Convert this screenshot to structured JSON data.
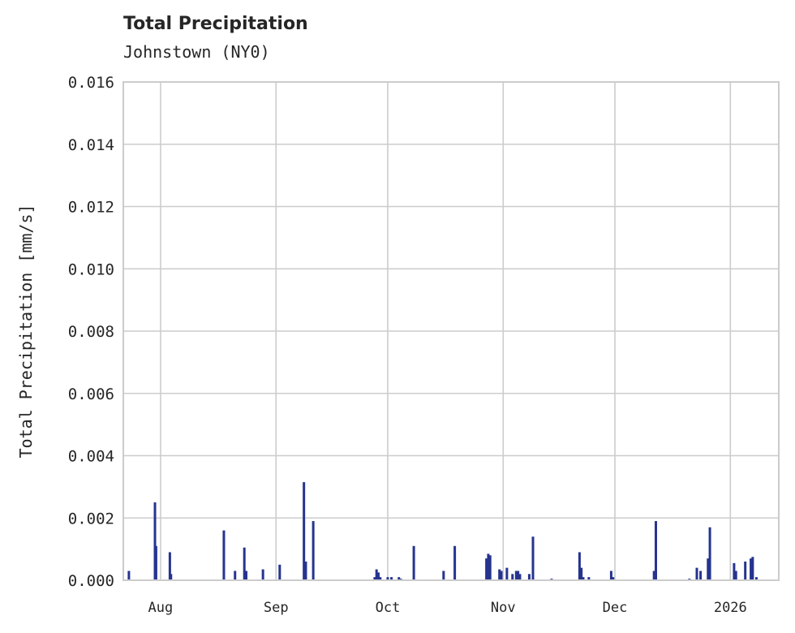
{
  "header": {
    "title": "Total Precipitation",
    "subtitle": "Johnstown (NY0)"
  },
  "chart_data": {
    "type": "bar",
    "title": "Total Precipitation",
    "subtitle": "Johnstown (NY0)",
    "xlabel": "",
    "ylabel": "Total Precipitation [mm/s]",
    "ylim": [
      0,
      0.016
    ],
    "yticks": [
      "0.000",
      "0.002",
      "0.004",
      "0.006",
      "0.008",
      "0.010",
      "0.012",
      "0.014",
      "0.016"
    ],
    "xtick_labels": [
      "Aug",
      "Sep",
      "Oct",
      "Nov",
      "Dec",
      "2026"
    ],
    "grid": true,
    "legend": null,
    "color": "#26348f",
    "x_unit": "days since plot start (approx. Jul 22)",
    "xlim": [
      0,
      176
    ],
    "xticks_pos": [
      10,
      41,
      71,
      102,
      132,
      163
    ],
    "x": [
      1.5,
      8.5,
      8.8,
      12.5,
      12.8,
      27,
      30,
      32.5,
      33,
      37.5,
      42,
      48.5,
      49,
      51,
      67.5,
      68,
      68.5,
      69,
      71,
      72,
      74,
      74.5,
      78,
      86,
      89,
      97.5,
      98,
      98.5,
      101,
      101.5,
      103,
      104.5,
      105.5,
      106,
      106.5,
      109,
      110,
      115,
      122.5,
      123,
      123.5,
      125,
      131,
      131.5,
      142.5,
      143,
      152,
      154,
      155,
      157,
      157.5,
      164,
      164.5,
      167,
      168.5,
      169,
      170
    ],
    "values": [
      0.0003,
      0.0025,
      0.0011,
      0.0009,
      0.0002,
      0.0016,
      0.0003,
      0.00105,
      0.0003,
      0.00035,
      0.0005,
      0.00315,
      0.0006,
      0.0019,
      0.0001,
      0.00035,
      0.00025,
      0.0001,
      0.0001,
      0.0001,
      0.0001,
      5e-05,
      0.0011,
      0.0003,
      0.0011,
      0.0007,
      0.00085,
      0.0008,
      0.00035,
      0.0003,
      0.0004,
      0.0002,
      0.0003,
      0.0003,
      0.0002,
      0.0002,
      0.0014,
      5e-05,
      0.0009,
      0.0004,
      0.0001,
      0.0001,
      0.0003,
      0.0001,
      0.0003,
      0.0019,
      5e-05,
      0.0004,
      0.0003,
      0.0007,
      0.0017,
      0.00055,
      0.0003,
      0.0006,
      0.0007,
      0.00075,
      0.0001
    ]
  }
}
